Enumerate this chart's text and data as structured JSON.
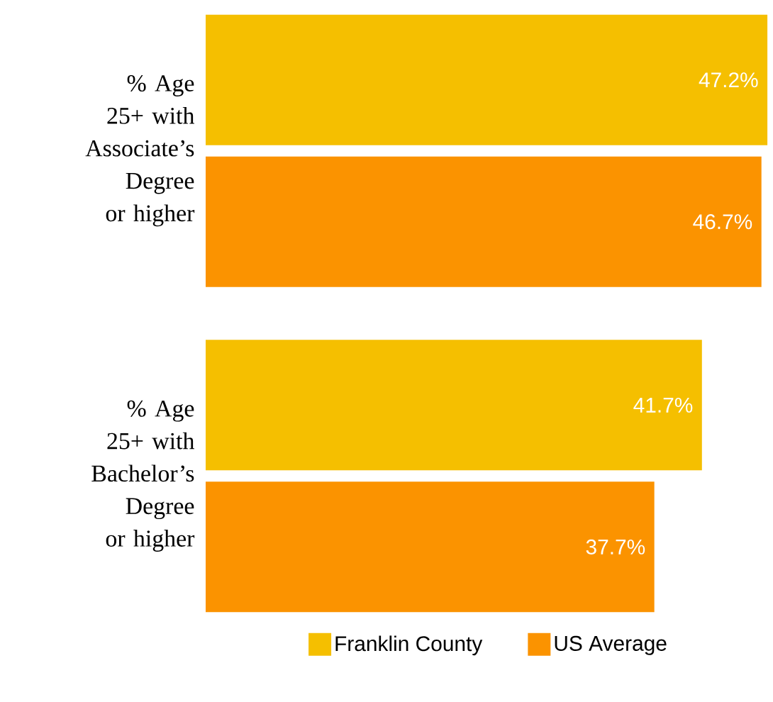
{
  "chart_data": {
    "type": "bar",
    "orientation": "horizontal",
    "categories": [
      "% Age 25+ with Associate’s Degree or higher",
      "% Age 25+ with Bachelor’s Degree or higher"
    ],
    "series": [
      {
        "name": "Franklin County",
        "color": "#f5bf00",
        "values": [
          47.2,
          41.7
        ],
        "value_labels": [
          "47.2%",
          "41.7%"
        ]
      },
      {
        "name": "US Average",
        "color": "#fb9300",
        "values": [
          46.7,
          37.7
        ],
        "value_labels": [
          "46.7%",
          "37.7%"
        ]
      }
    ],
    "tick_labels": "y",
    "legend": "bottom",
    "grid": false
  }
}
